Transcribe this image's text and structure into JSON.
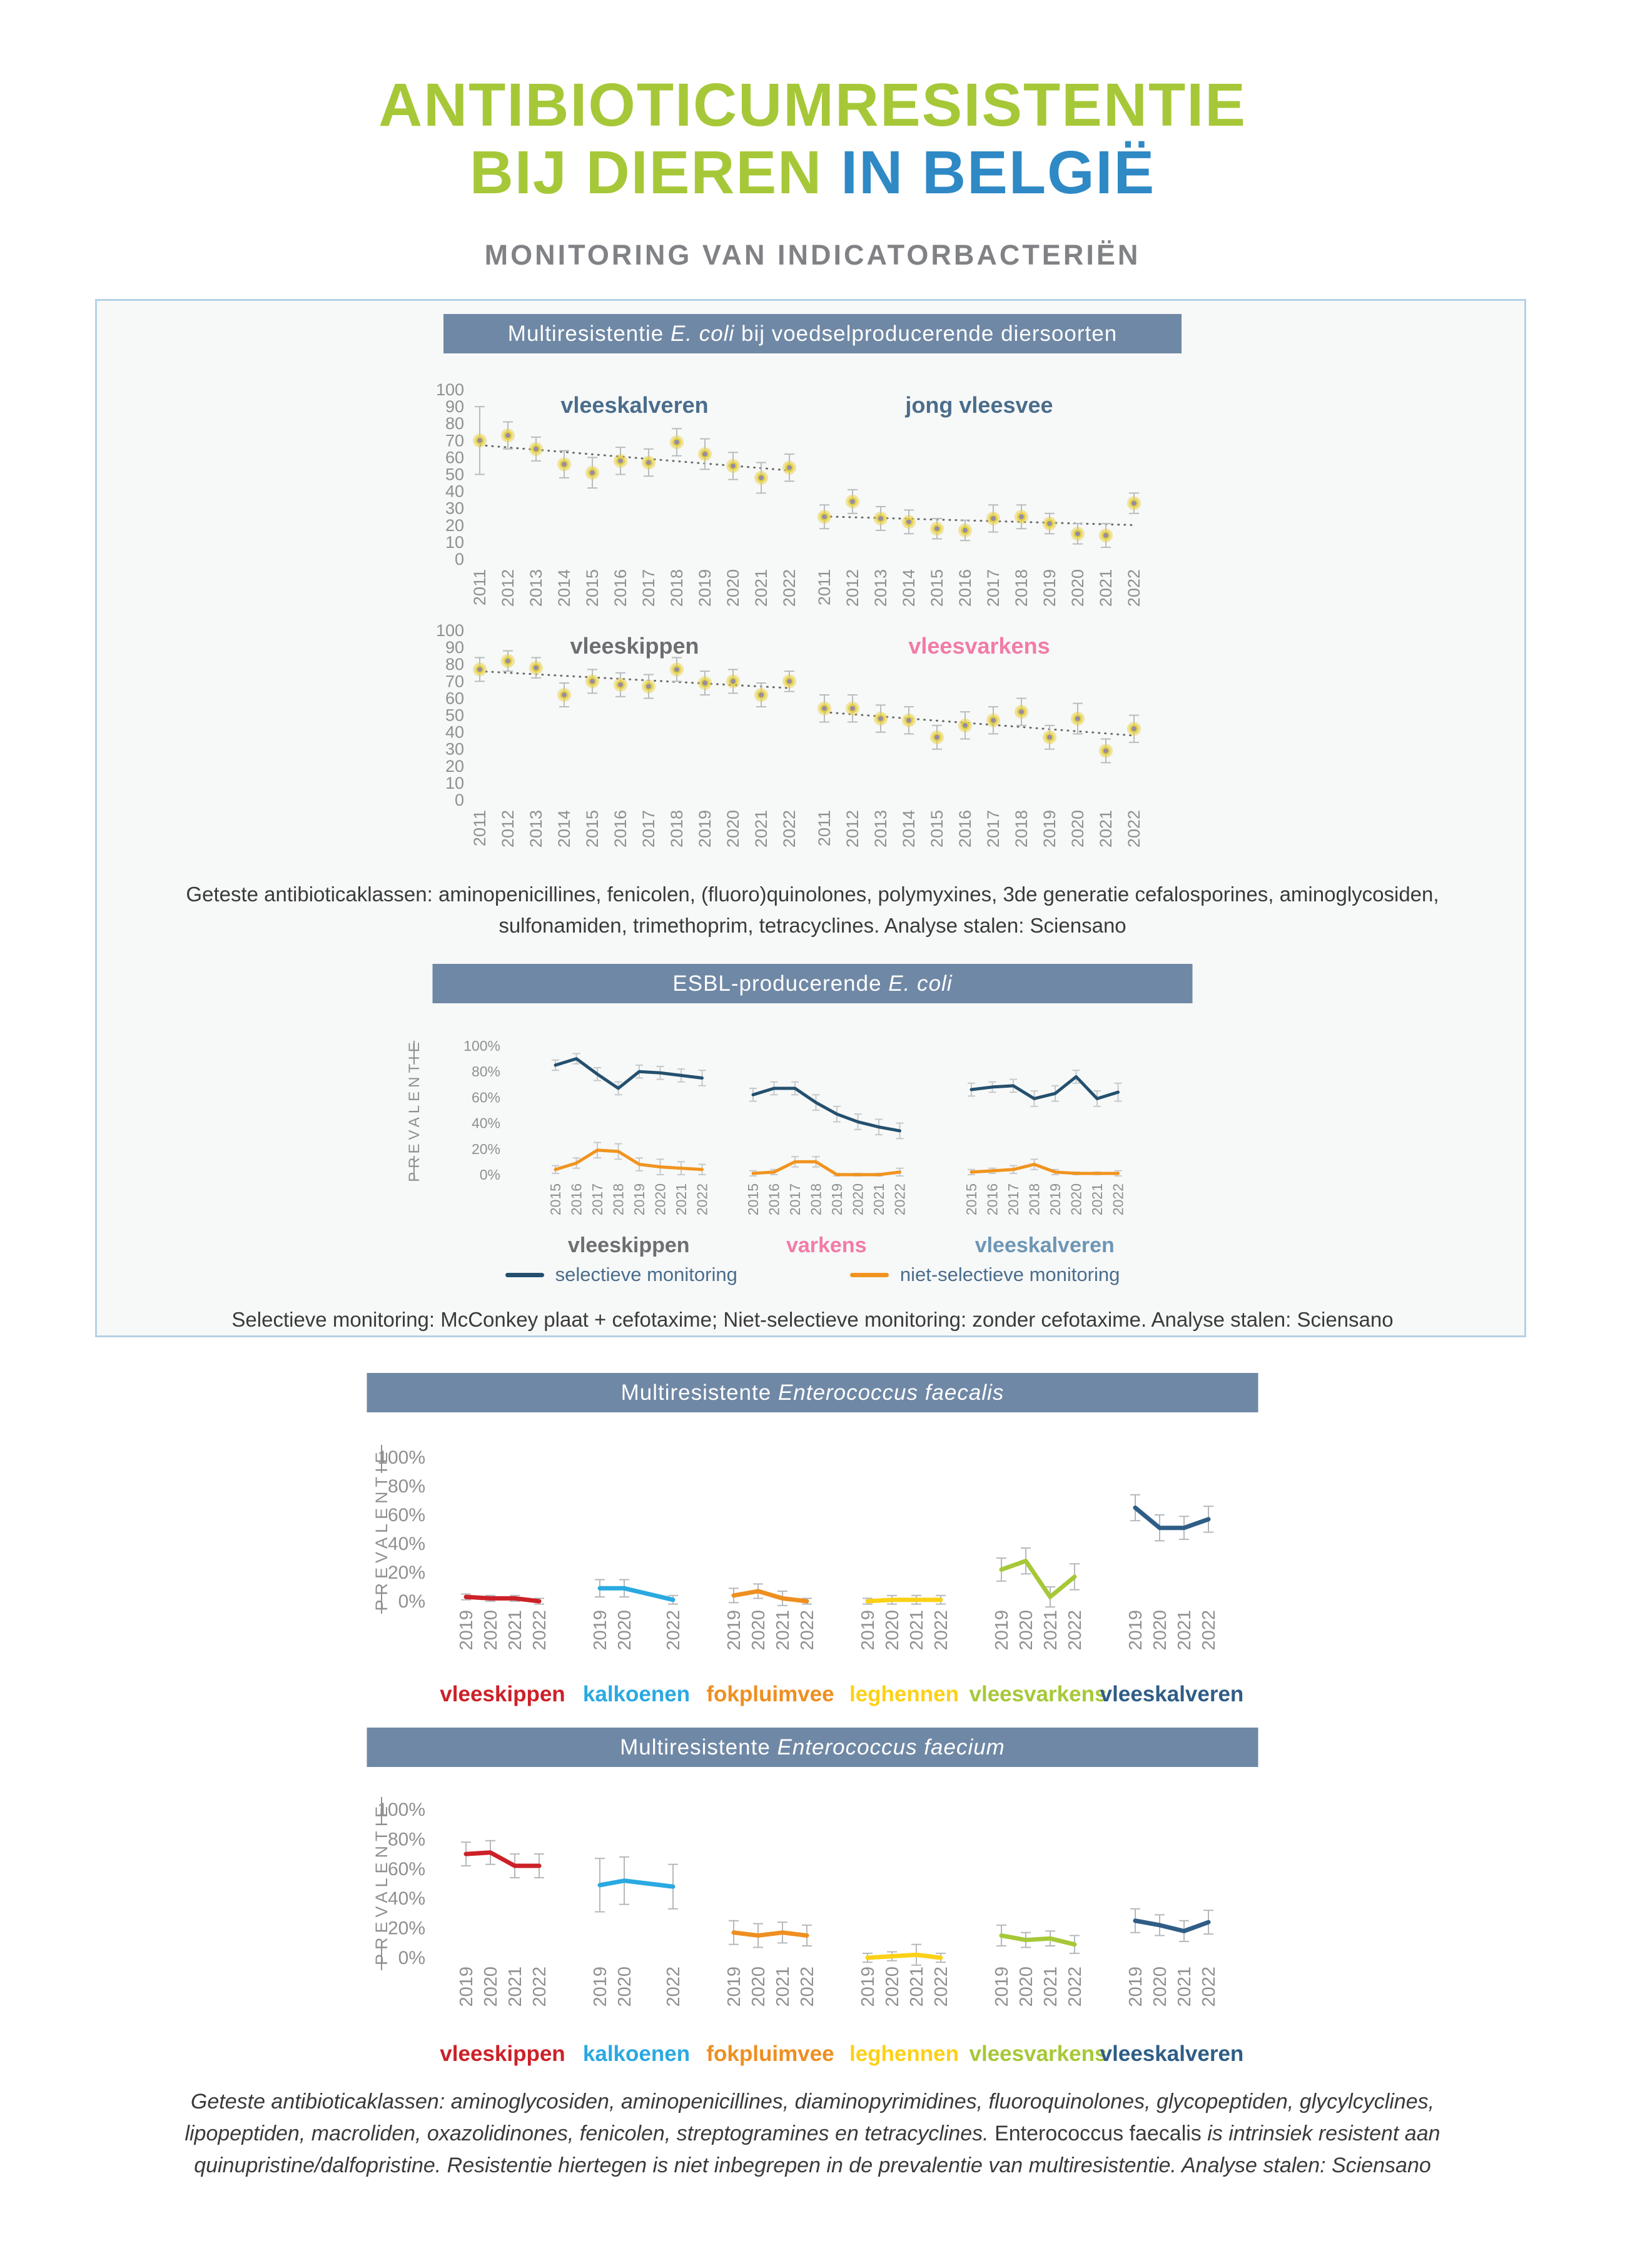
{
  "page": {
    "title_line1": "ANTIBIOTICUMRESISTENTIE",
    "title_line2_green": "BIJ DIEREN ",
    "title_line2_blue": "IN BELGIË",
    "subtitle": "MONITORING VAN INDICATORBACTERIËN"
  },
  "colors": {
    "title_green": "#a6c838",
    "title_blue": "#2e89c5",
    "subtitle_gray": "#808285",
    "header_bar": "#6f88a5",
    "panel_border": "#b5d2e4",
    "panel_bg": "#f7f8f8",
    "axis_text": "#8e9091",
    "caption_text": "#3a3a3a",
    "marker_outer": "#e5d044",
    "marker_inner": "#978ca1",
    "errorbar": "#b8bcbe",
    "trendline": "#6a6a6a"
  },
  "panel1": {
    "header": {
      "pre": "Multiresistentie ",
      "italic": "E. coli",
      "post": " bij voedselproducerende diersoorten"
    },
    "caption": "Geteste antibioticaklassen: aminopenicillines, fenicolen, (fluoro)quinolones, polymyxines, 3de generatie cefalosporines, aminoglycosiden, sulfonamiden, trimethoprim, tetracyclines. Analyse stalen: Sciensano"
  },
  "panel2": {
    "header": {
      "pre": "ESBL-producerende ",
      "italic": "E. coli"
    },
    "ylabel": "PREVALENTIE",
    "legend": [
      {
        "label": "selectieve monitoring",
        "color": "#24506e"
      },
      {
        "label": "niet-selectieve monitoring",
        "color": "#f0941f"
      }
    ],
    "caption": "Selectieve monitoring: McConkey plaat + cefotaxime; Niet-selectieve monitoring: zonder cefotaxime. Analyse stalen: Sciensano"
  },
  "panel3": {
    "header": {
      "pre": "Multiresistente ",
      "italic": "Enterococcus faecalis"
    },
    "ylabel": "PREVALENTIE"
  },
  "panel4": {
    "header": {
      "pre": "Multiresistente ",
      "italic": "Enterococcus faecium"
    },
    "ylabel": "PREVALENTIE"
  },
  "footer": {
    "seg1_italic": "Geteste antibioticaklassen: aminoglycosiden, aminopenicillines, diaminopyrimidines, fluoroquinolones, glycopeptiden, glycylcyclines, lipopeptiden, macroliden, oxazolidinones, fenicolen, streptogramines en tetracyclines. ",
    "species_upright": "Enterococcus faecalis",
    "seg2_italic": " is intrinsiek resistent aan quinupristine/dalfopristine. Resistentie hiertegen is niet inbegrepen in de prevalentie van multiresistentie. Analyse stalen: Sciensano"
  },
  "chart_data": [
    {
      "id": "ecoli-multiresistance",
      "type": "scatter",
      "title": "Multiresistentie E. coli bij voedselproducerende diersoorten",
      "ylabel": "",
      "ylim": [
        0,
        100
      ],
      "ytick_step": 10,
      "x": [
        2011,
        2012,
        2013,
        2014,
        2015,
        2016,
        2017,
        2018,
        2019,
        2020,
        2021,
        2022
      ],
      "trendline": true,
      "panels": [
        {
          "name": "vleeskalveren",
          "title_color": "#4a6d8c",
          "values": [
            70,
            73,
            65,
            56,
            51,
            58,
            57,
            69,
            62,
            55,
            48,
            54
          ],
          "err": [
            20,
            8,
            7,
            8,
            9,
            8,
            8,
            8,
            9,
            8,
            9,
            8
          ]
        },
        {
          "name": "jong vleesvee",
          "title_color": "#4a6d8c",
          "values": [
            25,
            34,
            24,
            22,
            18,
            17,
            24,
            25,
            21,
            15,
            14,
            33
          ],
          "err": [
            7,
            7,
            7,
            7,
            6,
            6,
            8,
            7,
            6,
            6,
            7,
            6
          ]
        },
        {
          "name": "vleeskippen",
          "title_color": "#6d6e71",
          "values": [
            77,
            82,
            78,
            62,
            70,
            68,
            67,
            77,
            69,
            70,
            62,
            70
          ],
          "err": [
            7,
            6,
            6,
            7,
            7,
            7,
            7,
            7,
            7,
            7,
            7,
            6
          ]
        },
        {
          "name": "vleesvarkens",
          "title_color": "#f27ba7",
          "values": [
            54,
            54,
            48,
            47,
            37,
            44,
            47,
            52,
            37,
            48,
            29,
            42
          ],
          "err": [
            8,
            8,
            8,
            8,
            7,
            8,
            8,
            8,
            7,
            9,
            7,
            8
          ]
        }
      ]
    },
    {
      "id": "esbl-ecoli",
      "type": "line",
      "title": "ESBL-producerende E. coli",
      "ylabel": "PREVALENTIE",
      "ylim": [
        0,
        100
      ],
      "ytick_step": 20,
      "x": [
        2015,
        2016,
        2017,
        2018,
        2019,
        2020,
        2021,
        2022
      ],
      "series_meta": [
        {
          "key": "selectieve",
          "label": "selectieve monitoring",
          "color": "#24506e"
        },
        {
          "key": "niet_selectieve",
          "label": "niet-selectieve monitoring",
          "color": "#f0941f"
        }
      ],
      "groups": [
        {
          "name": "vleeskippen",
          "label_color": "#6d6e71",
          "selectieve": {
            "values": [
              85,
              90,
              78,
              67,
              80,
              79,
              77,
              75
            ],
            "err": [
              4,
              4,
              5,
              5,
              5,
              5,
              5,
              6
            ]
          },
          "niet_selectieve": {
            "values": [
              4,
              9,
              19,
              18,
              8,
              6,
              5,
              4
            ],
            "err": [
              3,
              4,
              6,
              6,
              5,
              6,
              5,
              4
            ]
          }
        },
        {
          "name": "varkens",
          "label_color": "#f27ba7",
          "selectieve": {
            "values": [
              62,
              67,
              67,
              56,
              47,
              41,
              37,
              34
            ],
            "err": [
              5,
              5,
              5,
              6,
              6,
              6,
              6,
              6
            ]
          },
          "niet_selectieve": {
            "values": [
              1,
              2,
              10,
              10,
              0,
              0,
              0,
              2
            ],
            "err": [
              2,
              2,
              4,
              4,
              1,
              1,
              1,
              3
            ]
          }
        },
        {
          "name": "vleeskalveren",
          "label_color": "#6d96b5",
          "selectieve": {
            "values": [
              66,
              68,
              69,
              59,
              63,
              76,
              59,
              64
            ],
            "err": [
              5,
              4,
              5,
              6,
              6,
              5,
              6,
              7
            ]
          },
          "niet_selectieve": {
            "values": [
              2,
              3,
              4,
              8,
              2,
              1,
              1,
              1
            ],
            "err": [
              2,
              2,
              3,
              4,
              2,
              1,
              1,
              2
            ]
          }
        }
      ]
    },
    {
      "id": "enterococcus-faecalis",
      "type": "line",
      "title": "Multiresistente Enterococcus faecalis",
      "ylabel": "PREVALENTIE",
      "ylim": [
        0,
        100
      ],
      "ytick_step": 20,
      "x": [
        2019,
        2020,
        2021,
        2022
      ],
      "groups": [
        {
          "name": "vleeskippen",
          "color": "#cc2128",
          "years": [
            2019,
            2020,
            2021,
            2022
          ],
          "values": [
            3,
            2,
            2,
            0
          ],
          "err": [
            2,
            2,
            2,
            2
          ]
        },
        {
          "name": "kalkoenen",
          "color": "#2aa9e1",
          "years": [
            2019,
            2020,
            2022
          ],
          "values": [
            9,
            9,
            1
          ],
          "err": [
            6,
            6,
            3
          ]
        },
        {
          "name": "fokpluimvee",
          "color": "#ee8f20",
          "years": [
            2019,
            2020,
            2021,
            2022
          ],
          "values": [
            4,
            7,
            2,
            0
          ],
          "err": [
            5,
            5,
            5,
            2
          ]
        },
        {
          "name": "leghennen",
          "color": "#fcd116",
          "years": [
            2019,
            2020,
            2021,
            2022
          ],
          "values": [
            0,
            1,
            1,
            1
          ],
          "err": [
            2,
            3,
            3,
            3
          ]
        },
        {
          "name": "vleesvarkens",
          "color": "#a6c838",
          "years": [
            2019,
            2020,
            2021,
            2022
          ],
          "values": [
            22,
            28,
            3,
            17
          ],
          "err": [
            8,
            9,
            7,
            9
          ]
        },
        {
          "name": "vleeskalveren",
          "color": "#2f5d86",
          "years": [
            2019,
            2020,
            2021,
            2022
          ],
          "values": [
            65,
            51,
            51,
            57
          ],
          "err": [
            9,
            9,
            8,
            9
          ]
        }
      ]
    },
    {
      "id": "enterococcus-faecium",
      "type": "line",
      "title": "Multiresistente Enterococcus faecium",
      "ylabel": "PREVALENTIE",
      "ylim": [
        0,
        100
      ],
      "ytick_step": 20,
      "x": [
        2019,
        2020,
        2021,
        2022
      ],
      "groups": [
        {
          "name": "vleeskippen",
          "color": "#cc2128",
          "years": [
            2019,
            2020,
            2021,
            2022
          ],
          "values": [
            70,
            71,
            62,
            62
          ],
          "err": [
            8,
            8,
            8,
            8
          ]
        },
        {
          "name": "kalkoenen",
          "color": "#2aa9e1",
          "years": [
            2019,
            2020,
            2022
          ],
          "values": [
            49,
            52,
            48
          ],
          "err": [
            18,
            16,
            15
          ]
        },
        {
          "name": "fokpluimvee",
          "color": "#ee8f20",
          "years": [
            2019,
            2020,
            2021,
            2022
          ],
          "values": [
            17,
            15,
            17,
            15
          ],
          "err": [
            8,
            8,
            7,
            7
          ]
        },
        {
          "name": "leghennen",
          "color": "#fcd116",
          "years": [
            2019,
            2020,
            2021,
            2022
          ],
          "values": [
            0,
            1,
            2,
            0
          ],
          "err": [
            3,
            3,
            7,
            3
          ]
        },
        {
          "name": "vleesvarkens",
          "color": "#a6c838",
          "years": [
            2019,
            2020,
            2021,
            2022
          ],
          "values": [
            15,
            12,
            13,
            9
          ],
          "err": [
            7,
            5,
            5,
            6
          ]
        },
        {
          "name": "vleeskalveren",
          "color": "#2f5d86",
          "years": [
            2019,
            2020,
            2021,
            2022
          ],
          "values": [
            25,
            22,
            18,
            24
          ],
          "err": [
            8,
            7,
            7,
            8
          ]
        }
      ]
    }
  ]
}
